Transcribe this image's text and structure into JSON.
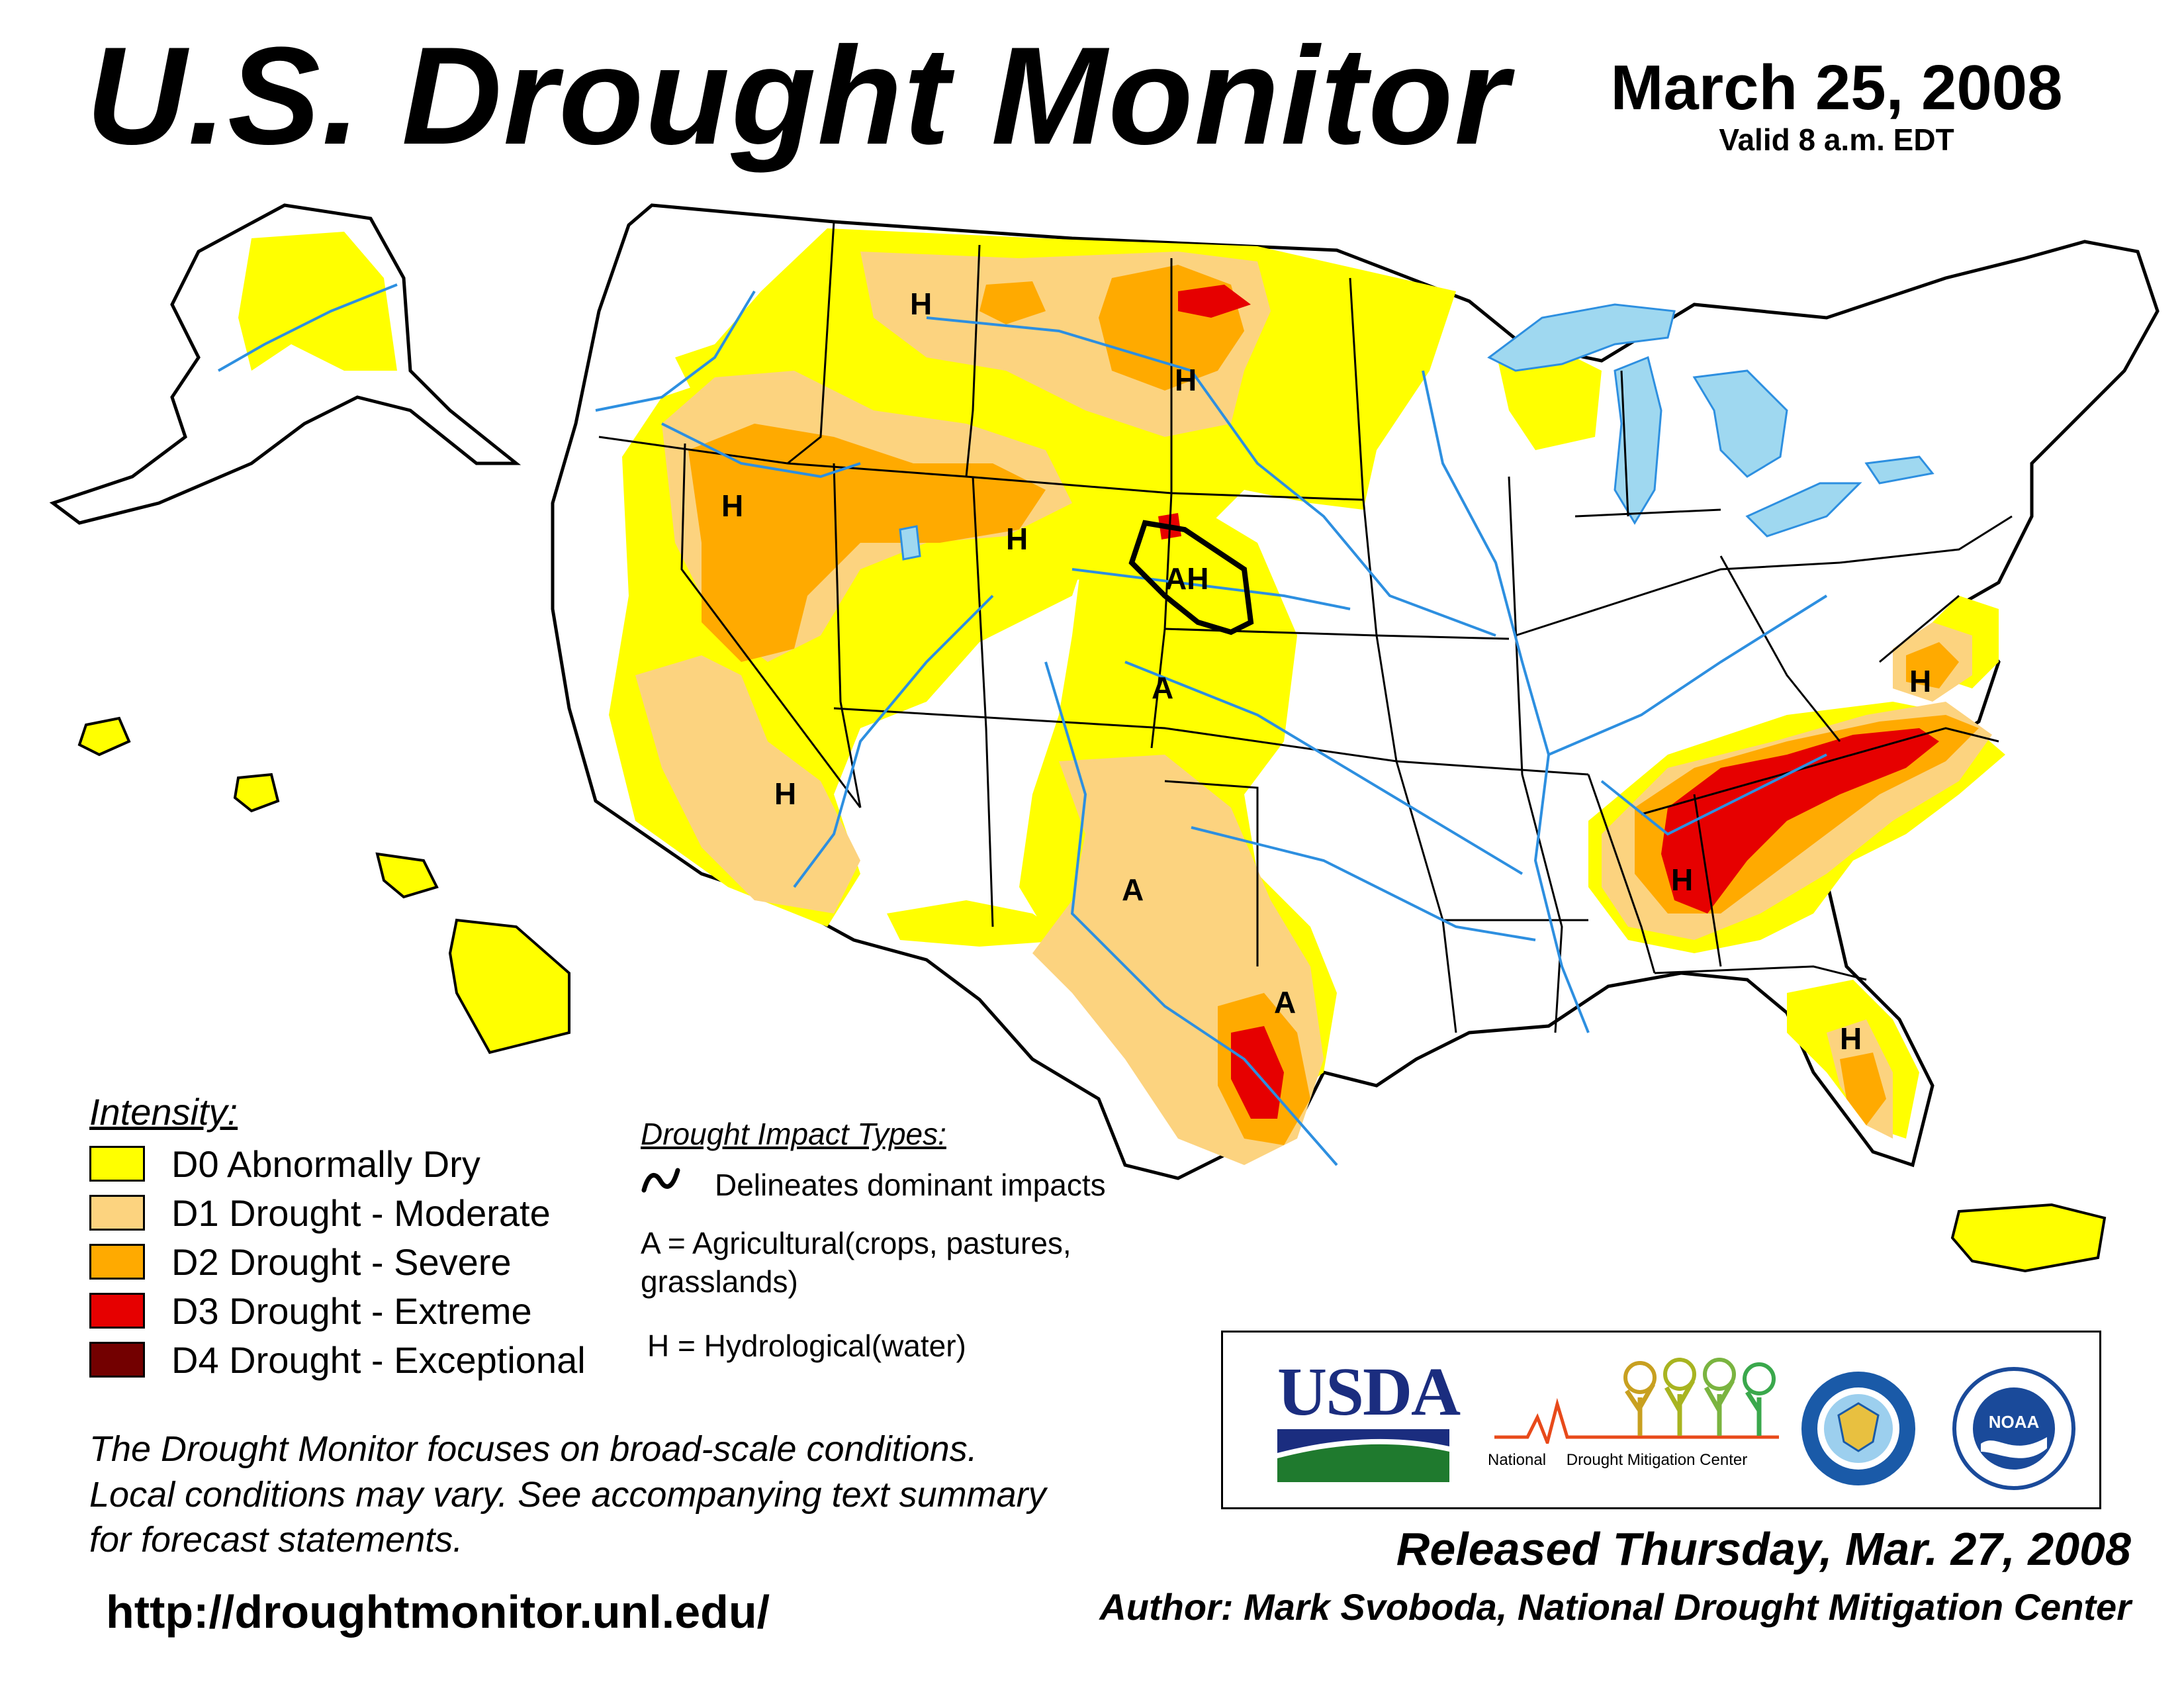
{
  "header": {
    "title": "U.S. Drought Monitor",
    "date": "March 25, 2008",
    "valid": "Valid 8 a.m. EDT"
  },
  "colors": {
    "d0": "#ffff00",
    "d1": "#fcd37f",
    "d2": "#ffaa00",
    "d3": "#e60000",
    "d4": "#730000",
    "water": "#9fd8f0",
    "rivers": "#2d8fe0",
    "boundaries": "#000000",
    "county": "#9a9a9a"
  },
  "map_labels": [
    "H",
    "H",
    "H",
    "H",
    "AH",
    "A",
    "H",
    "A",
    "A",
    "H",
    "H",
    "H"
  ],
  "legend": {
    "title": "Intensity:",
    "items": [
      {
        "label": "D0 Abnormally Dry",
        "color": "#ffff00"
      },
      {
        "label": "D1 Drought - Moderate",
        "color": "#fcd37f"
      },
      {
        "label": "D2 Drought - Severe",
        "color": "#ffaa00"
      },
      {
        "label": "D3 Drought - Extreme",
        "color": "#e60000"
      },
      {
        "label": "D4 Drought - Exceptional",
        "color": "#730000"
      }
    ]
  },
  "impacts": {
    "title": "Drought Impact Types:",
    "delineate": "Delineates dominant impacts",
    "agricultural_1": "A = Agricultural(crops, pastures,",
    "agricultural_2": "grasslands)",
    "hydrological": "H = Hydrological(water)"
  },
  "note": {
    "line1": "The Drought Monitor focuses on broad-scale conditions.",
    "line2": "Local conditions may vary. See accompanying text summary",
    "line3": "for forecast statements."
  },
  "url": "http://droughtmonitor.unl.edu/",
  "logos": {
    "usda": "USDA",
    "ndmc_1": "National",
    "ndmc_2": "Drought Mitigation Center",
    "noaa": "NOAA"
  },
  "footer": {
    "released": "Released Thursday, Mar. 27, 2008",
    "author": "Author: Mark Svoboda, National Drought Mitigation Center"
  }
}
